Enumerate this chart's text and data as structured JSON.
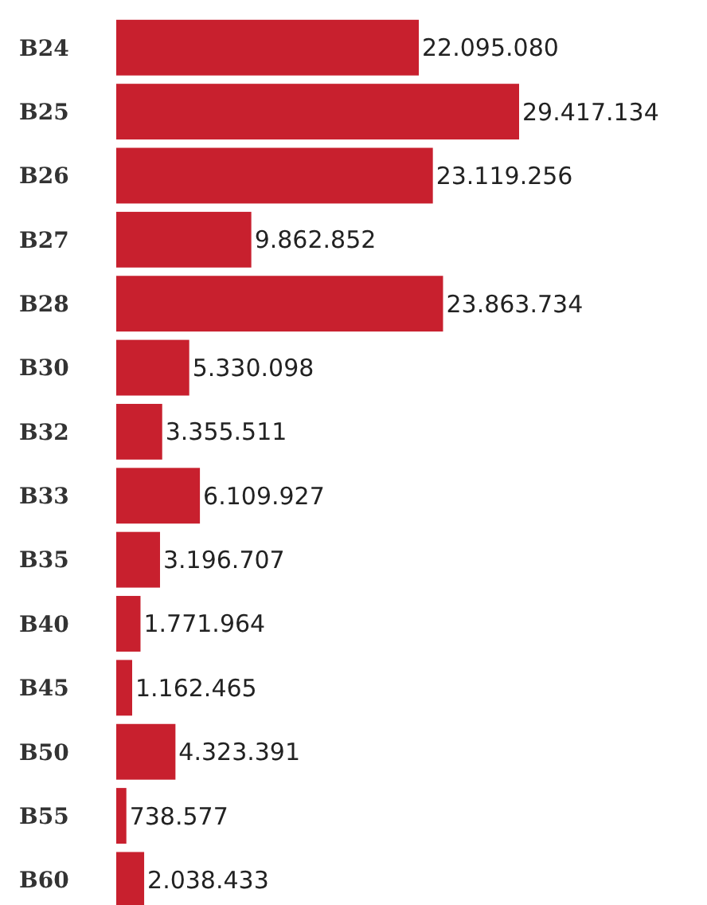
{
  "chart_data": {
    "type": "bar",
    "orientation": "horizontal",
    "categories": [
      "B24",
      "B25",
      "B26",
      "B27",
      "B28",
      "B30",
      "B32",
      "B33",
      "B35",
      "B40",
      "B45",
      "B50",
      "B55",
      "B60"
    ],
    "values": [
      22095080,
      29417134,
      23119256,
      9862852,
      23863734,
      5330098,
      3355511,
      6109927,
      3196707,
      1771964,
      1162465,
      4323391,
      738577,
      2038433
    ],
    "color": "#c8202e",
    "value_labels": [
      "22.095.080",
      "29.417.134",
      "23.119.256",
      "9.862.852",
      "23.863.734",
      "5.330.098",
      "3.355.511",
      "6.109.927",
      "3.196.707",
      "1.771.964",
      "1.162.465",
      "4.323.391",
      "738.577",
      "2.038.433"
    ]
  }
}
